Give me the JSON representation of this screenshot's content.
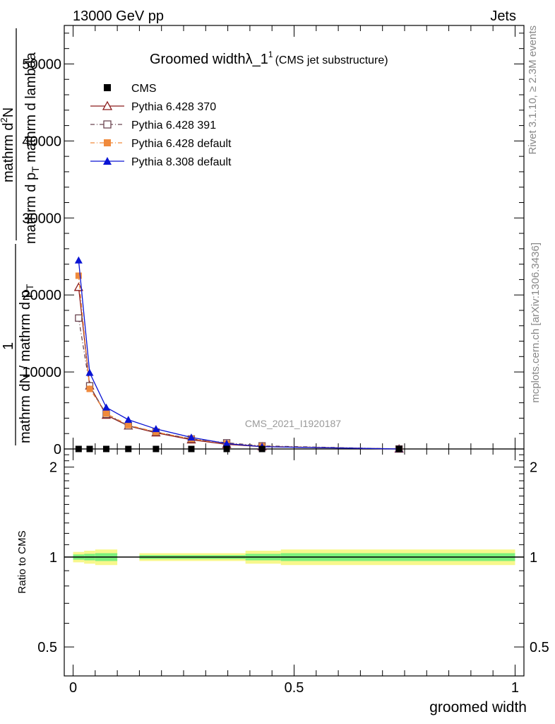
{
  "header": {
    "energy_label": "13000 GeV pp",
    "process_label": "Jets"
  },
  "side_labels": {
    "rivet": "Rivet 3.1.10, ≥ 2.3M events",
    "mcplots": "mcplots.cern.ch [arXiv:1306.3436]"
  },
  "watermark": "CMS_2021_I1920187",
  "chart_data": [
    {
      "type": "line",
      "title_main": "Groomed width",
      "title_lambda": "λ_1",
      "title_sup": "1",
      "title_paren": "(CMS jet substructure)",
      "ylabel": {
        "num_line1": "mathrm d",
        "num_line1_sup": "2",
        "num_line1_rest": "N",
        "den_line1": "mathrm d p",
        "den_line1_sub": "T",
        "den_line1_rest": " mathrm d lambda",
        "num_line2": "1",
        "den_line2": "mathrm dN / mathrm d p",
        "den_line2_sub": "T"
      },
      "ylim": [
        0,
        55000
      ],
      "xlim": [
        -0.02,
        1.02
      ],
      "y_ticks": [
        0,
        10000,
        20000,
        30000,
        40000,
        50000
      ],
      "y_tick_labels": [
        "0",
        "10000",
        "20000",
        "30000",
        "40000",
        "50000"
      ],
      "legend_position": "top-left",
      "series": [
        {
          "name": "CMS",
          "color": "#000000",
          "marker": "square-filled",
          "x": [
            0.0125,
            0.0375,
            0.075,
            0.125,
            0.1875,
            0.2675,
            0.3475,
            0.4275,
            0.7375
          ],
          "values": [
            0,
            0,
            0,
            0,
            0,
            0,
            0,
            0,
            0
          ]
        },
        {
          "name": "Pythia 6.428 370",
          "color": "#8b1a1a",
          "marker": "triangle-open",
          "dash": "",
          "x": [
            0.0125,
            0.0375,
            0.075,
            0.125,
            0.1875,
            0.2675,
            0.3475,
            0.4275,
            0.7375
          ],
          "values": [
            21000,
            8200,
            4400,
            3000,
            2100,
            1200,
            600,
            300,
            0
          ]
        },
        {
          "name": "Pythia 6.428 391",
          "color": "#6b4550",
          "marker": "square-open",
          "dash": "6,3,1,3",
          "x": [
            0.0125,
            0.0375,
            0.075,
            0.125,
            0.1875,
            0.2675,
            0.3475,
            0.4275,
            0.7375
          ],
          "values": [
            17000,
            8200,
            4500,
            3000,
            2200,
            1300,
            800,
            400,
            0
          ]
        },
        {
          "name": "Pythia 6.428 default",
          "color": "#f08a3c",
          "marker": "square-filled",
          "dash": "6,3,1,3",
          "x": [
            0.0125,
            0.0375,
            0.075,
            0.125,
            0.1875,
            0.2675,
            0.3475,
            0.4275,
            0.7375
          ],
          "values": [
            22500,
            7800,
            4600,
            3100,
            2200,
            1300,
            700,
            350,
            0
          ]
        },
        {
          "name": "Pythia 8.308 default",
          "color": "#0a14d4",
          "marker": "triangle-filled",
          "dash": "",
          "x": [
            0.0125,
            0.0375,
            0.075,
            0.125,
            0.1875,
            0.2675,
            0.3475,
            0.4275,
            0.7375
          ],
          "values": [
            24500,
            9900,
            5400,
            3800,
            2600,
            1500,
            700,
            300,
            0
          ]
        }
      ]
    },
    {
      "type": "area",
      "ylabel": "Ratio to CMS",
      "xlabel": "groomed width",
      "ylim": [
        0.4,
        2.3
      ],
      "xlim": [
        -0.02,
        1.02
      ],
      "y_ticks": [
        0.5,
        1,
        2
      ],
      "y_tick_labels": [
        "0.5",
        "1",
        "2"
      ],
      "x_ticks": [
        0,
        0.5,
        1
      ],
      "x_tick_labels": [
        "0",
        "0.5",
        "1"
      ],
      "colors": {
        "inner_band": "#7cf07c",
        "outer_band": "#f7f78c",
        "reference": "#000000"
      },
      "bands": [
        {
          "x0": 0.0,
          "x1": 0.025,
          "inner": [
            0.98,
            1.02
          ],
          "outer": [
            0.96,
            1.04
          ]
        },
        {
          "x0": 0.025,
          "x1": 0.05,
          "inner": [
            0.975,
            1.025
          ],
          "outer": [
            0.95,
            1.05
          ]
        },
        {
          "x0": 0.05,
          "x1": 0.1,
          "inner": [
            0.97,
            1.03
          ],
          "outer": [
            0.94,
            1.06
          ]
        },
        {
          "x0": 0.15,
          "x1": 0.39,
          "inner": [
            0.985,
            1.015
          ],
          "outer": [
            0.97,
            1.03
          ]
        },
        {
          "x0": 0.39,
          "x1": 0.47,
          "inner": [
            0.975,
            1.025
          ],
          "outer": [
            0.95,
            1.05
          ]
        },
        {
          "x0": 0.47,
          "x1": 1.0,
          "inner": [
            0.97,
            1.03
          ],
          "outer": [
            0.94,
            1.06
          ]
        }
      ]
    }
  ]
}
